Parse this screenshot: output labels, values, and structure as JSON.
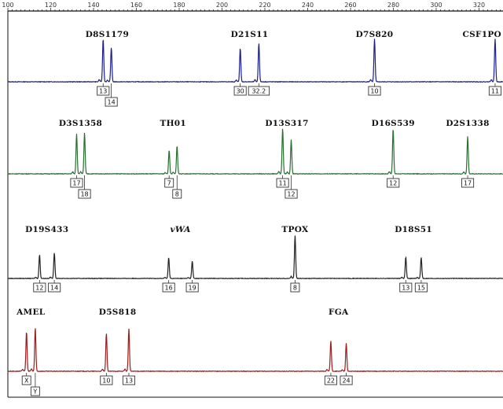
{
  "chart_data": {
    "type": "line",
    "x_axis": {
      "min": 100,
      "max": 330,
      "ticks": [
        100,
        120,
        140,
        160,
        180,
        200,
        220,
        240,
        260,
        280,
        300,
        320
      ],
      "minor_step": 2
    },
    "panels": [
      {
        "name": "blue",
        "color": "#1c1f8c",
        "loci": [
          {
            "label": "D8S1179",
            "alleles": [
              {
                "label": "13",
                "x": 144.5,
                "h": 1.0
              },
              {
                "label": "14",
                "x": 148.3,
                "h": 0.8
              }
            ]
          },
          {
            "label": "D21S11",
            "alleles": [
              {
                "label": "30",
                "x": 208.5,
                "h": 0.78
              },
              {
                "label": "32.2",
                "x": 217.2,
                "h": 0.9
              }
            ]
          },
          {
            "label": "D7S820",
            "alleles": [
              {
                "label": "10",
                "x": 271.2,
                "h": 1.0
              }
            ]
          },
          {
            "label": "CSF1PO",
            "alleles": [
              {
                "label": "11",
                "x": 327.5,
                "h": 1.0
              }
            ]
          }
        ]
      },
      {
        "name": "green",
        "color": "#2a6e32",
        "loci": [
          {
            "label": "D3S1358",
            "alleles": [
              {
                "label": "17",
                "x": 132.1,
                "h": 0.88
              },
              {
                "label": "18",
                "x": 135.8,
                "h": 0.9
              }
            ]
          },
          {
            "label": "TH01",
            "alleles": [
              {
                "label": "7",
                "x": 175.3,
                "h": 0.52
              },
              {
                "label": "8",
                "x": 179.0,
                "h": 0.62
              }
            ]
          },
          {
            "label": "D13S317",
            "alleles": [
              {
                "label": "11",
                "x": 228.3,
                "h": 1.0
              },
              {
                "label": "12",
                "x": 232.3,
                "h": 0.75
              }
            ]
          },
          {
            "label": "D16S539",
            "alleles": [
              {
                "label": "12",
                "x": 279.9,
                "h": 1.0
              }
            ]
          },
          {
            "label": "D2S1338",
            "alleles": [
              {
                "label": "17",
                "x": 314.7,
                "h": 0.82
              }
            ]
          }
        ]
      },
      {
        "name": "black",
        "color": "#222222",
        "loci": [
          {
            "label": "D19S433",
            "alleles": [
              {
                "label": "12",
                "x": 114.8,
                "h": 0.55
              },
              {
                "label": "14",
                "x": 121.7,
                "h": 0.6
              }
            ]
          },
          {
            "label": "vWA",
            "alleles": [
              {
                "label": "16",
                "x": 175.1,
                "h": 0.48
              },
              {
                "label": "19",
                "x": 186.1,
                "h": 0.4
              }
            ]
          },
          {
            "label": "TPOX",
            "alleles": [
              {
                "label": "8",
                "x": 234.1,
                "h": 1.0
              }
            ]
          },
          {
            "label": "D18S51",
            "alleles": [
              {
                "label": "13",
                "x": 285.8,
                "h": 0.5
              },
              {
                "label": "15",
                "x": 293.0,
                "h": 0.48
              }
            ]
          }
        ]
      },
      {
        "name": "red",
        "color": "#9e1b1b",
        "loci": [
          {
            "label": "AMEL",
            "alleles": [
              {
                "label": "X",
                "x": 108.7,
                "h": 0.92
              },
              {
                "label": "Y",
                "x": 112.8,
                "h": 1.0
              }
            ]
          },
          {
            "label": "D5S818",
            "alleles": [
              {
                "label": "10",
                "x": 146.0,
                "h": 0.88
              },
              {
                "label": "13",
                "x": 156.5,
                "h": 0.98
              }
            ]
          },
          {
            "label": "FGA",
            "alleles": [
              {
                "label": "22",
                "x": 250.8,
                "h": 0.7
              },
              {
                "label": "24",
                "x": 258.0,
                "h": 0.65
              }
            ]
          }
        ]
      }
    ]
  }
}
